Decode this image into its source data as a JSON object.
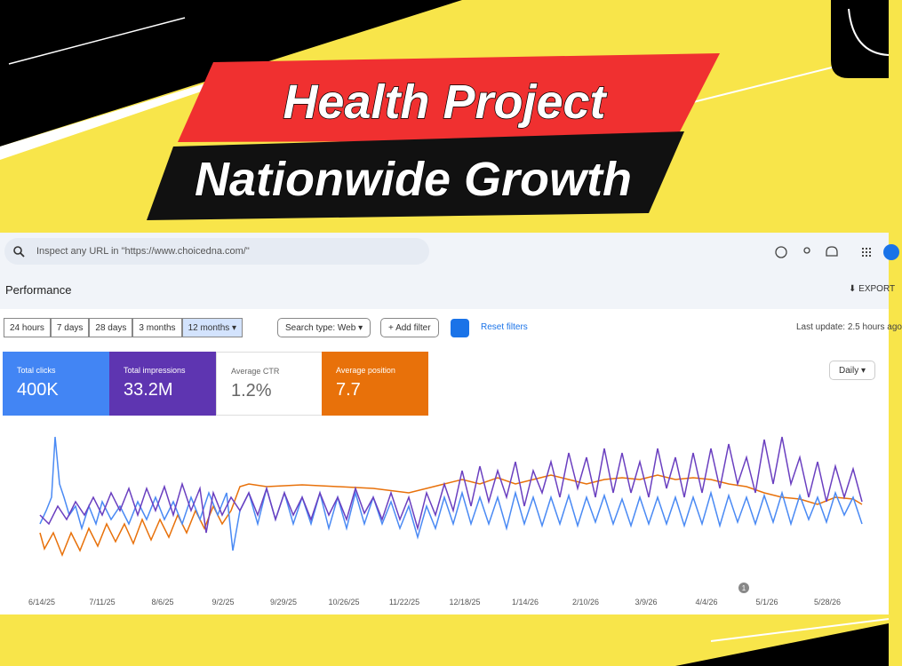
{
  "banner": {
    "line1": "Health Project",
    "line2": "Nationwide Growth"
  },
  "toolbar": {
    "search_placeholder": "Inspect any URL in \"https://www.choicedna.com/\""
  },
  "header": {
    "title": "Performance",
    "export": "EXPORT"
  },
  "filters": {
    "ranges": [
      "24 hours",
      "7 days",
      "28 days",
      "3 months",
      "12 months"
    ],
    "search_type": "Search type: Web",
    "add_filter": "Add filter",
    "reset": "Reset filters",
    "last_update": "Last update: 2.5 hours ago"
  },
  "metrics": [
    {
      "label": "Total clicks",
      "value": "400K"
    },
    {
      "label": "Total impressions",
      "value": "33.2M"
    },
    {
      "label": "Average CTR",
      "value": "1.2%"
    },
    {
      "label": "Average position",
      "value": "7.7"
    }
  ],
  "granularity": "Daily",
  "chart": {
    "x_labels": [
      "6/14/25",
      "7/11/25",
      "8/6/25",
      "9/2/25",
      "9/29/25",
      "10/26/25",
      "11/22/25",
      "12/18/25",
      "1/14/26",
      "2/10/26",
      "3/9/26",
      "4/4/26",
      "5/1/26",
      "5/28/26"
    ],
    "annotation": "1"
  }
}
